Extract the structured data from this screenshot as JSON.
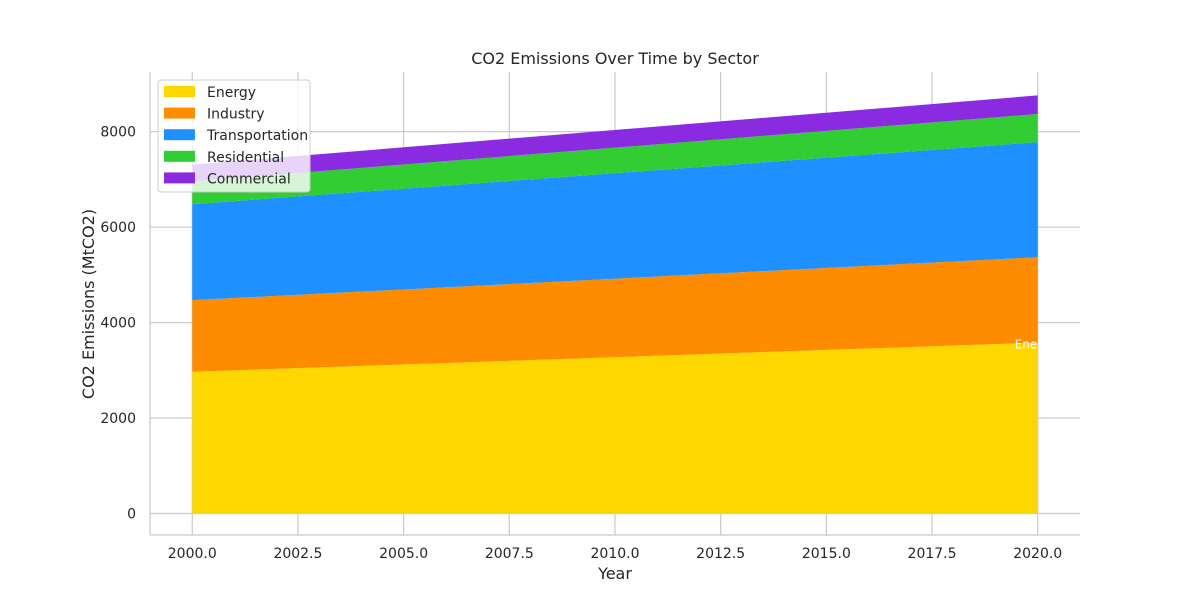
{
  "chart_data": {
    "type": "area",
    "title": "CO2 Emissions Over Time by Sector",
    "xlabel": "Year",
    "ylabel": "CO2 Emissions (MtCO2)",
    "x": [
      2000,
      2020
    ],
    "xlim": [
      1999,
      2021
    ],
    "ylim": [
      -450,
      9250
    ],
    "xticks": [
      2000,
      2002.5,
      2005,
      2007.5,
      2010,
      2012.5,
      2015,
      2017.5,
      2020
    ],
    "xtick_labels": [
      "2000.0",
      "2002.5",
      "2005.0",
      "2007.5",
      "2010.0",
      "2012.5",
      "2015.0",
      "2017.5",
      "2020.0"
    ],
    "yticks": [
      0,
      2000,
      4000,
      6000,
      8000
    ],
    "ytick_labels": [
      "0",
      "2000",
      "4000",
      "6000",
      "8000"
    ],
    "grid": true,
    "legend_position": "top-left",
    "stacked": true,
    "series": [
      {
        "name": "Energy",
        "values": [
          2970,
          3580
        ],
        "color": "#FFD700"
      },
      {
        "name": "Industry",
        "values": [
          1500,
          1790
        ],
        "color": "#FF8C00"
      },
      {
        "name": "Transportation",
        "values": [
          2010,
          2410
        ],
        "color": "#1E90FF"
      },
      {
        "name": "Residential",
        "values": [
          480,
          590
        ],
        "color": "#32CD32"
      },
      {
        "name": "Commercial",
        "values": [
          350,
          390
        ],
        "color": "#8A2BE2"
      }
    ],
    "annotations": [
      {
        "text": "Ene",
        "x": 2020,
        "y": 3350
      }
    ]
  }
}
